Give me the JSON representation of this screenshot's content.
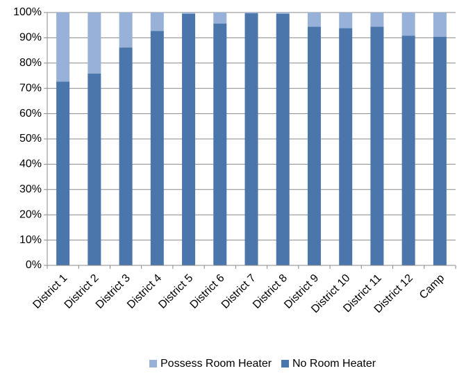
{
  "chart_data": {
    "type": "stacked_bar",
    "categories": [
      "District 1",
      "District 2",
      "District 3",
      "District 4",
      "District 5",
      "District 6",
      "District 7",
      "District 8",
      "District 9",
      "District 10",
      "District 11",
      "District 12",
      "Camp"
    ],
    "series": [
      {
        "name": "No Room Heater",
        "color": "#4a76ab",
        "values": [
          72.7,
          75.9,
          86.2,
          92.7,
          99.5,
          95.6,
          99.7,
          99.5,
          94.4,
          93.8,
          94.4,
          90.8,
          90.4
        ]
      },
      {
        "name": "Possess Room Heater",
        "color": "#98b1d8",
        "values": [
          27.3,
          24.1,
          13.8,
          7.3,
          0.5,
          4.4,
          0.3,
          0.5,
          5.6,
          6.2,
          5.6,
          9.2,
          9.6
        ]
      }
    ],
    "ylim": [
      0,
      100
    ],
    "yticks": [
      {
        "value": 0,
        "label": "0%"
      },
      {
        "value": 10,
        "label": "10%"
      },
      {
        "value": 20,
        "label": "20%"
      },
      {
        "value": 30,
        "label": "30%"
      },
      {
        "value": 40,
        "label": "40%"
      },
      {
        "value": 50,
        "label": "50%"
      },
      {
        "value": 60,
        "label": "60%"
      },
      {
        "value": 70,
        "label": "70%"
      },
      {
        "value": 80,
        "label": "80%"
      },
      {
        "value": 90,
        "label": "90%"
      },
      {
        "value": 100,
        "label": "100%"
      }
    ],
    "grid": true
  }
}
